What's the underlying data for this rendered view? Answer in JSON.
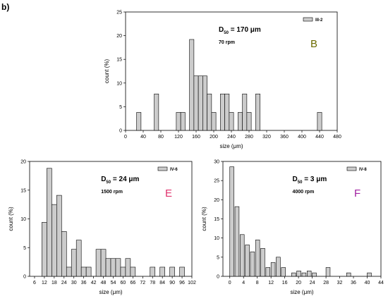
{
  "panel_label": "b)",
  "chart_data": [
    {
      "type": "bar",
      "key": "B",
      "xlabel": "size (μm)",
      "ylabel": "count (%)",
      "xlim": [
        0,
        480
      ],
      "ylim": [
        0,
        25
      ],
      "xticks": [
        0,
        40,
        80,
        120,
        160,
        200,
        240,
        280,
        320,
        360,
        400,
        440,
        480
      ],
      "yticks": [
        0,
        5,
        10,
        15,
        20,
        25
      ],
      "bar_width": 10,
      "bar_fill": "#cccccc",
      "legend": {
        "entry": "III-2",
        "position": "top-right"
      },
      "annotation": {
        "d_prefix": "D",
        "d_sub": "50",
        "d_value": " = 170 μm",
        "speed": "70 rpm"
      },
      "letter": {
        "text": "B",
        "color": "#6b6b00"
      },
      "x": [
        30,
        70,
        120,
        130,
        150,
        160,
        170,
        180,
        190,
        200,
        220,
        230,
        240,
        260,
        270,
        280,
        300,
        440
      ],
      "values": [
        3.8,
        7.7,
        3.8,
        3.8,
        19.2,
        11.5,
        11.5,
        11.5,
        7.7,
        3.8,
        7.7,
        7.7,
        3.8,
        3.8,
        7.7,
        3.8,
        7.7,
        3.8
      ]
    },
    {
      "type": "bar",
      "key": "E",
      "xlabel": "size (μm)",
      "ylabel": "count (%)",
      "xlim": [
        3,
        102
      ],
      "ylim": [
        0,
        20
      ],
      "xticks": [
        6,
        12,
        18,
        24,
        30,
        36,
        42,
        48,
        54,
        60,
        66,
        72,
        78,
        84,
        90,
        96,
        102
      ],
      "yticks": [
        0,
        5,
        10,
        15,
        20
      ],
      "bar_width": 3,
      "bar_fill": "#cccccc",
      "legend": {
        "entry": "IV-6",
        "position": "top-right"
      },
      "annotation": {
        "d_prefix": "D",
        "d_sub": "50",
        "d_value": " = 24 μm",
        "speed": "1500 rpm"
      },
      "letter": {
        "text": "E",
        "color": "#e0316c"
      },
      "x": [
        12,
        15,
        18,
        21,
        24,
        27,
        30,
        33,
        36,
        39,
        45,
        48,
        51,
        54,
        57,
        60,
        63,
        66,
        78,
        84,
        90,
        96
      ],
      "values": [
        9.4,
        18.8,
        12.5,
        14.1,
        7.8,
        1.6,
        4.7,
        6.3,
        1.6,
        1.6,
        4.7,
        4.7,
        3.1,
        3.1,
        3.1,
        1.6,
        3.1,
        1.6,
        1.6,
        1.6,
        1.6,
        1.6
      ]
    },
    {
      "type": "bar",
      "key": "F",
      "xlabel": "size (μm)",
      "ylabel": "count (%)",
      "xlim": [
        -2,
        44
      ],
      "ylim": [
        0,
        30
      ],
      "xticks": [
        0,
        4,
        8,
        12,
        16,
        20,
        24,
        28,
        32,
        36,
        40,
        44
      ],
      "yticks": [
        0,
        5,
        10,
        15,
        20,
        25,
        30
      ],
      "bar_width": 1.2,
      "bar_fill": "#cccccc",
      "legend": {
        "entry": "IV-8",
        "position": "top-right"
      },
      "annotation": {
        "d_prefix": "D",
        "d_sub": "50",
        "d_value": " = 3 μm",
        "speed": "4000 rpm"
      },
      "letter": {
        "text": "F",
        "color": "#a020a0"
      },
      "x": [
        0.6,
        2.1,
        3.6,
        5.1,
        6.6,
        8.1,
        9.6,
        11.1,
        12.6,
        14.1,
        15.6,
        18.6,
        20.1,
        21.6,
        23.1,
        24.6,
        28.6,
        34.6,
        40.6
      ],
      "values": [
        28.6,
        18.2,
        10.9,
        8.2,
        6.4,
        9.5,
        7.3,
        2.3,
        3.6,
        5.0,
        2.3,
        0.9,
        1.4,
        0.9,
        1.4,
        0.9,
        2.3,
        0.9,
        0.9
      ]
    }
  ]
}
